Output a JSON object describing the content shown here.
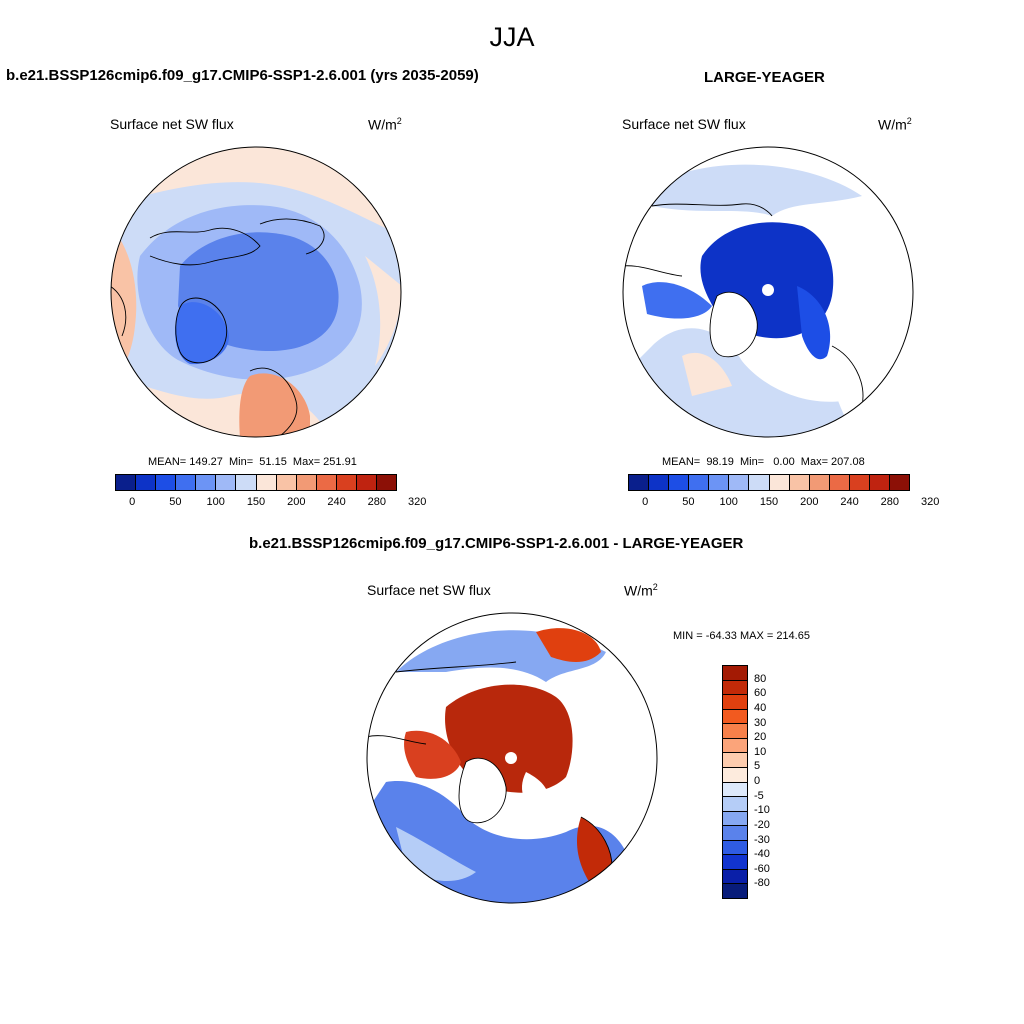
{
  "page": {
    "title": "JJA"
  },
  "panel_a": {
    "title": "b.e21.BSSP126cmip6.f09_g17.CMIP6-SSP1-2.6.001 (yrs 2035-2059)",
    "variable": "Surface net SW flux",
    "units": "W/m",
    "units_sup": "2",
    "stats": "MEAN= 149.27  Min=  51.15  Max= 251.91",
    "colorbar_ticks": [
      "0",
      "50",
      "100",
      "150",
      "200",
      "240",
      "280",
      "320"
    ],
    "colors": [
      "#0a1f8c",
      "#0d33c7",
      "#1d4ee6",
      "#3f6ff0",
      "#6c94f5",
      "#9fb9f7",
      "#cddcf7",
      "#fbe6d9",
      "#f9c3a6",
      "#f29a75",
      "#eb6a45",
      "#d9401f",
      "#bf2310",
      "#8c1006"
    ]
  },
  "panel_b": {
    "title": "LARGE-YEAGER",
    "variable": "Surface net SW flux",
    "units": "W/m",
    "units_sup": "2",
    "stats": "MEAN=  98.19  Min=   0.00  Max= 207.08",
    "colorbar_ticks": [
      "0",
      "50",
      "100",
      "150",
      "200",
      "240",
      "280",
      "320"
    ],
    "colors": [
      "#0a1f8c",
      "#0d33c7",
      "#1d4ee6",
      "#3f6ff0",
      "#6c94f5",
      "#9fb9f7",
      "#cddcf7",
      "#fbe6d9",
      "#f9c3a6",
      "#f29a75",
      "#eb6a45",
      "#d9401f",
      "#bf2310",
      "#8c1006"
    ]
  },
  "panel_diff": {
    "title": "b.e21.BSSP126cmip6.f09_g17.CMIP6-SSP1-2.6.001 - LARGE-YEAGER",
    "variable": "Surface net SW flux",
    "units": "W/m",
    "units_sup": "2",
    "stats": "MIN = -64.33 MAX = 214.65",
    "colorbar_ticks": [
      "80",
      "60",
      "40",
      "30",
      "20",
      "10",
      "5",
      "0",
      "-5",
      "-10",
      "-20",
      "-30",
      "-40",
      "-60",
      "-80"
    ],
    "colors": [
      "#a31a04",
      "#c22a08",
      "#e0400f",
      "#f25a1f",
      "#f7804a",
      "#fba47a",
      "#fdccae",
      "#fdebdd",
      "#dde9fb",
      "#b5cdf7",
      "#86a8f2",
      "#5a82eb",
      "#2f5ce3",
      "#1234cf",
      "#0a1fa8",
      "#081c7a"
    ]
  },
  "map_colors": {
    "ocean_light": "#cddcf7",
    "ocean_mid": "#9fb9f7",
    "ice_mid": "#5a82eb",
    "ice_deep": "#3f6ff0",
    "ice_deeper": "#0d33c7",
    "warm_light": "#fbe6d9",
    "warm_mid": "#f9c3a6",
    "warm_strong": "#eb6a45",
    "diff_red": "#b8280c",
    "diff_red2": "#d9401f"
  }
}
